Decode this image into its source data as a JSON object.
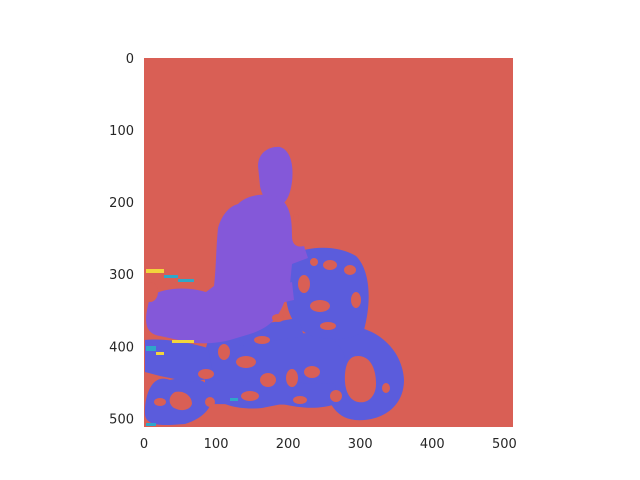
{
  "chart_data": {
    "type": "heatmap",
    "title": "",
    "xlabel": "",
    "ylabel": "",
    "xlim": [
      0,
      512
    ],
    "ylim": [
      512,
      0
    ],
    "x_ticks": [
      0,
      100,
      200,
      300,
      400,
      500
    ],
    "y_ticks": [
      0,
      100,
      200,
      300,
      400,
      500
    ],
    "grid": false,
    "colors": {
      "background_class": "#d95f55",
      "rider_class": "#8458d9",
      "motorcycle_class": "#5b5cdc",
      "clutter_cyan": "#2fa7c9",
      "clutter_yellow": "#f2d43c"
    },
    "classes": [
      {
        "color": "#d95f55"
      },
      {
        "color": "#8458d9"
      },
      {
        "color": "#5b5cdc"
      }
    ]
  }
}
